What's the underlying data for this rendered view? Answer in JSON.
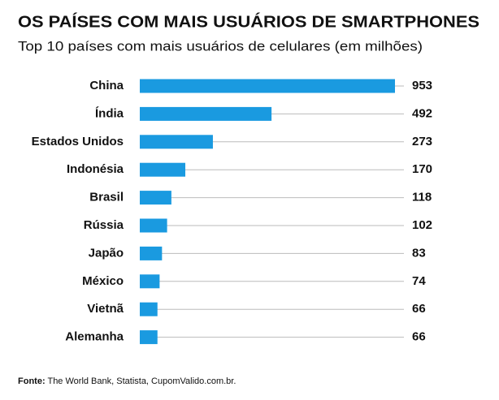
{
  "chart_data": {
    "type": "hbar",
    "title": "OS PAÍSES COM MAIS USUÁRIOS DE SMARTPHONES",
    "subtitle": "Top 10 países com mais usuários de celulares (em milhões)",
    "categories": [
      "China",
      "Índia",
      "Estados Unidos",
      "Indonésia",
      "Brasil",
      "Rússia",
      "Japão",
      "México",
      "Vietnã",
      "Alemanha"
    ],
    "values": [
      953,
      492,
      273,
      170,
      118,
      102,
      83,
      74,
      66,
      66
    ],
    "color": "#1a9ae0",
    "source_label": "Fonte:",
    "source": "The World Bank, Statista, CupomValido.com.br."
  }
}
